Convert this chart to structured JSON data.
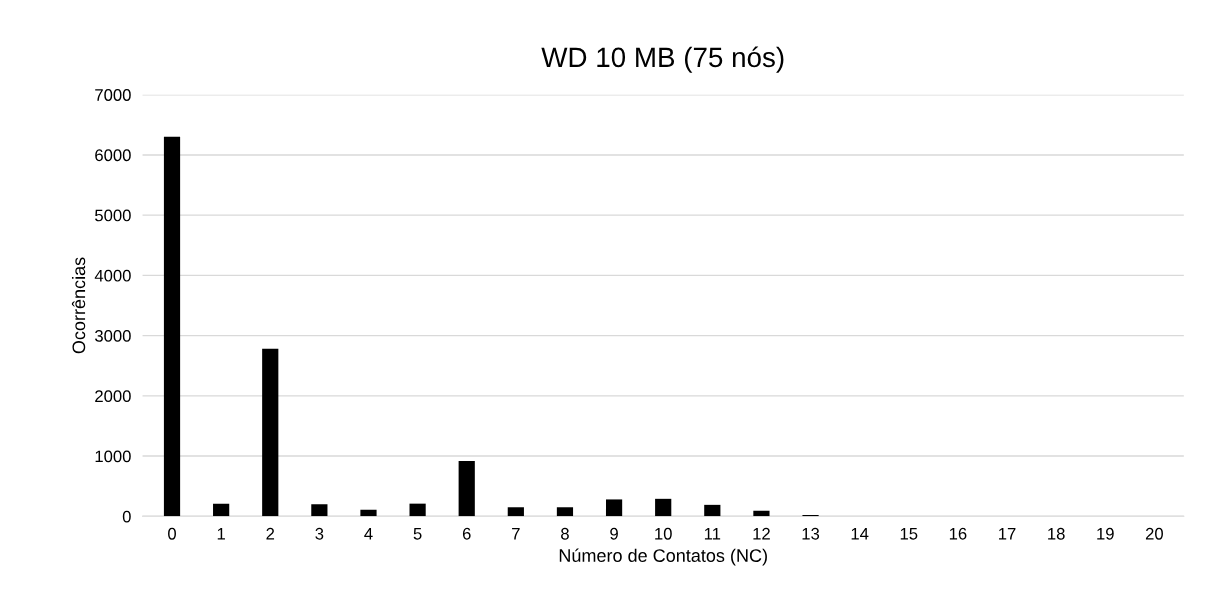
{
  "chart_data": {
    "type": "bar",
    "title": "WD 10 MB (75 nós)",
    "xlabel": "Número de Contatos (NC)",
    "ylabel": "Ocorrências",
    "categories": [
      "0",
      "1",
      "2",
      "3",
      "4",
      "5",
      "6",
      "7",
      "8",
      "9",
      "10",
      "11",
      "12",
      "13",
      "14",
      "15",
      "16",
      "17",
      "18",
      "19",
      "20"
    ],
    "values": [
      6300,
      210,
      2780,
      200,
      110,
      210,
      920,
      150,
      150,
      280,
      290,
      190,
      90,
      20,
      null,
      null,
      null,
      0,
      0,
      0,
      null
    ],
    "color": "#000000",
    "ylim": [
      0,
      7000
    ],
    "yticks": [
      0,
      1000,
      2000,
      3000,
      4000,
      5000,
      6000,
      7000
    ],
    "grid": "y",
    "legend": false
  }
}
